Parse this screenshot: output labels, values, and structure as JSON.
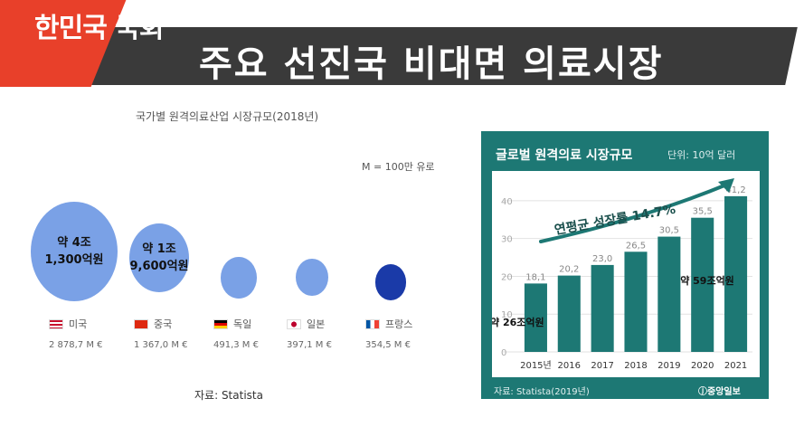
{
  "header": {
    "logo": "한민국 국회",
    "title": "주요 선진국 비대면 의료시장"
  },
  "colors": {
    "red": "#e8402a",
    "dark": "#3a3a3a",
    "teal": "#1d7874",
    "bubble": "#7aa1e6",
    "bubble_dark": "#1a3aa8"
  },
  "left_chart": {
    "title": "국가별 원격의료산업 시장규모(2018년)",
    "unit_note": "M = 100만 유로",
    "source": "자료: Statista",
    "items": [
      {
        "country": "미국",
        "flag": "us-flag-icon",
        "value": "2 878,7 M €",
        "amount": 2878.7,
        "label": "약 4조\n1,300억원"
      },
      {
        "country": "중국",
        "flag": "cn-flag-icon",
        "value": "1 367,0 M €",
        "amount": 1367.0,
        "label": "약 1조\n9,600억원"
      },
      {
        "country": "독일",
        "flag": "de-flag-icon",
        "value": "491,3 M €",
        "amount": 491.3,
        "label": ""
      },
      {
        "country": "일본",
        "flag": "jp-flag-icon",
        "value": "397,1 M €",
        "amount": 397.1,
        "label": ""
      },
      {
        "country": "프랑스",
        "flag": "fr-flag-icon",
        "value": "354,5 M €",
        "amount": 354.5,
        "label": ""
      }
    ]
  },
  "chart_data": {
    "type": "bar",
    "title": "글로벌 원격의료 시장규모",
    "unit": "단위: 10억 달러",
    "categories": [
      "2015년",
      "2016",
      "2017",
      "2018",
      "2019",
      "2020",
      "2021"
    ],
    "values": [
      18.1,
      20.2,
      23.0,
      26.5,
      30.5,
      35.5,
      41.2
    ],
    "value_labels": [
      "18,1",
      "20,2",
      "23,0",
      "26,5",
      "30,5",
      "35,5",
      "41,2"
    ],
    "yticks": [
      0,
      10,
      20,
      30,
      40
    ],
    "ylim": [
      0,
      45
    ],
    "annotation_growth": "연평균 성장률 14.7%",
    "annotation_start": "약 26조억원",
    "annotation_end": "약 59조억원",
    "source": "자료: Statista(2019년)",
    "brand": "ⓙ중앙일보"
  }
}
